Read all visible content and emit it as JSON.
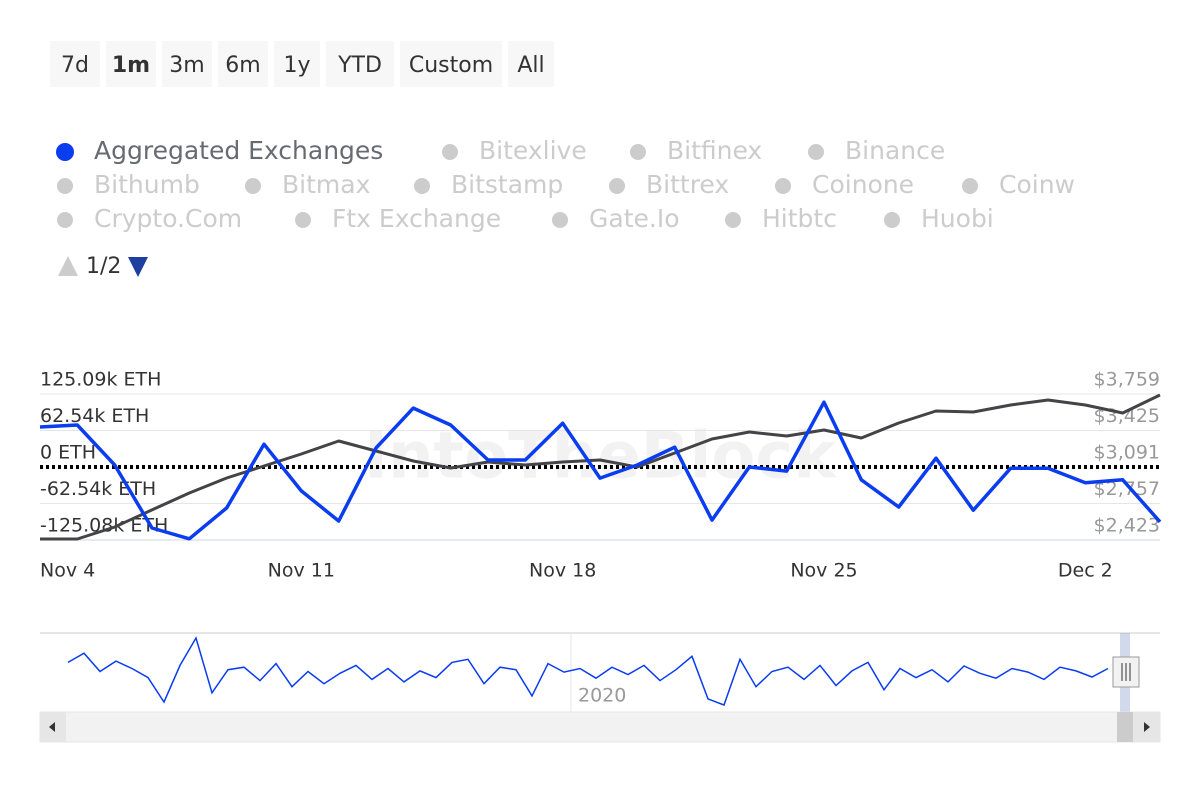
{
  "range_buttons": [
    "7d",
    "1m",
    "3m",
    "6m",
    "1y",
    "YTD",
    "Custom",
    "All"
  ],
  "active_button": 1,
  "legend": [
    "Aggregated Exchanges",
    "Bitexlive",
    "Bitfinex",
    "Binance",
    "Bithumb",
    "Bitmax",
    "Bitstamp",
    "Bittrex",
    "Coinone",
    "Coinw",
    "Crypto.Com",
    "Ftx Exchange",
    "Gate.Io",
    "Hitbtc",
    "Huobi"
  ],
  "legend_active": 0,
  "legend_page": "1/2",
  "watermark": "IntoTheBlock",
  "chart_data": {
    "type": "line",
    "categories": [
      "Nov 4",
      null,
      null,
      null,
      null,
      null,
      null,
      "Nov 11",
      null,
      null,
      null,
      null,
      null,
      null,
      "Nov 18",
      null,
      null,
      null,
      null,
      null,
      null,
      "Nov 25",
      null,
      null,
      null,
      null,
      null,
      null,
      "Dec 2",
      null,
      null
    ],
    "series": [
      {
        "name": "Aggregated Exchanges",
        "color": "#0a3cf0",
        "values": [
          68500,
          72000,
          3400,
          -104500,
          -123000,
          -70000,
          39000,
          -41000,
          -92500,
          32500,
          101000,
          72000,
          12000,
          12000,
          75000,
          -19000,
          3400,
          34000,
          -91000,
          0,
          -7000,
          111000,
          -22000,
          -68500,
          15000,
          -74000,
          -2000,
          -2000,
          -27000,
          -22000,
          -94000
        ]
      },
      {
        "color": "#434348",
        "axis": "y2",
        "values": [
          2432,
          2432,
          2542,
          2698,
          2853,
          2990,
          3100,
          3210,
          3329,
          3237,
          3146,
          3082,
          3137,
          3109,
          3137,
          3155,
          3091,
          3219,
          3347,
          3411,
          3375,
          3430,
          3356,
          3494,
          3603,
          3594,
          3658,
          3704,
          3658,
          3585,
          3750
        ]
      }
    ],
    "ylim": [
      -125080,
      125090
    ],
    "yticks": [
      {
        "value": 125090,
        "label": "125.09k ETH"
      },
      {
        "value": 62540,
        "label": "62.54k ETH"
      },
      {
        "value": 0,
        "label": "0 ETH"
      },
      {
        "value": -62540,
        "label": "-62.54k ETH"
      },
      {
        "value": -125080,
        "label": "-125.08k ETH"
      }
    ],
    "y2lim": [
      2423,
      3759
    ],
    "y2ticks": [
      {
        "value": 3759,
        "label": "$3,759"
      },
      {
        "value": 3425,
        "label": "$3,425"
      },
      {
        "value": 3091,
        "label": "$3,091"
      },
      {
        "value": 2757,
        "label": "$2,757"
      },
      {
        "value": 2423,
        "label": "$2,423"
      }
    ],
    "navigator": {
      "label": "2020",
      "values": [
        20000,
        35000,
        5000,
        22000,
        10000,
        -5000,
        -45000,
        15000,
        60000,
        -30000,
        8000,
        12000,
        -10000,
        18000,
        -20000,
        5000,
        -15000,
        2000,
        15000,
        -8000,
        10000,
        -12000,
        6000,
        -5000,
        20000,
        25000,
        -15000,
        12000,
        8000,
        -35000,
        18000,
        4000,
        10000,
        -6000,
        12000,
        0,
        15000,
        -10000,
        8000,
        30000,
        -40000,
        -50000,
        25000,
        -20000,
        5000,
        12000,
        -8000,
        15000,
        -18000,
        6000,
        20000,
        -25000,
        10000,
        -5000,
        8000,
        -12000,
        14000,
        2000,
        -6000,
        10000,
        4000,
        -8000,
        12000,
        6000,
        -4000,
        10000
      ]
    }
  }
}
